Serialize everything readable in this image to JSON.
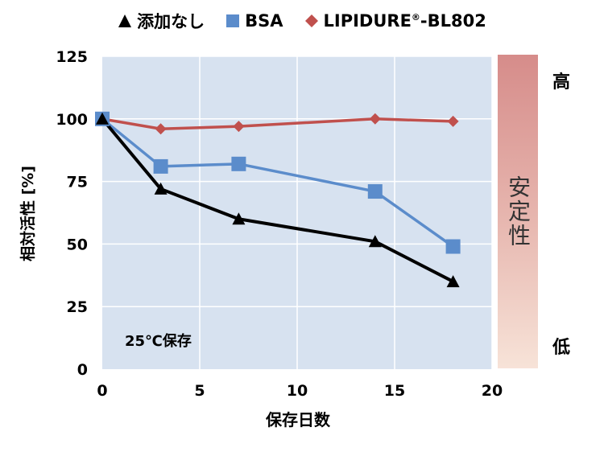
{
  "chart_data": {
    "type": "line",
    "xlabel": "保存日数",
    "ylabel": "相対活性 [%]",
    "xlim": [
      0,
      20
    ],
    "ylim": [
      0,
      125
    ],
    "xticks": [
      0,
      5,
      10,
      15,
      20
    ],
    "yticks": [
      0,
      25,
      50,
      75,
      100,
      125
    ],
    "grid": true,
    "legend_position": "top",
    "annotation": "25℃保存",
    "series": [
      {
        "name": "添加なし",
        "marker": "triangle",
        "color": "#000000",
        "x": [
          0,
          3,
          7,
          14,
          18
        ],
        "y": [
          100,
          72,
          60,
          51,
          35
        ]
      },
      {
        "name": "BSA",
        "marker": "square",
        "color": "#5b8ccb",
        "x": [
          0,
          3,
          7,
          14,
          18
        ],
        "y": [
          100,
          81,
          82,
          71,
          49
        ]
      },
      {
        "name": "LIPIDURE",
        "name_sup": "®",
        "name_suffix": "-BL802",
        "marker": "diamond",
        "color": "#c0504d",
        "x": [
          0,
          3,
          7,
          14,
          18
        ],
        "y": [
          100,
          96,
          97,
          100,
          99
        ]
      }
    ]
  },
  "stability": {
    "label": "安定性",
    "high": "高",
    "low": "低"
  },
  "colors": {
    "plot_bg": "#d7e2f0",
    "grid": "#ffffff"
  }
}
